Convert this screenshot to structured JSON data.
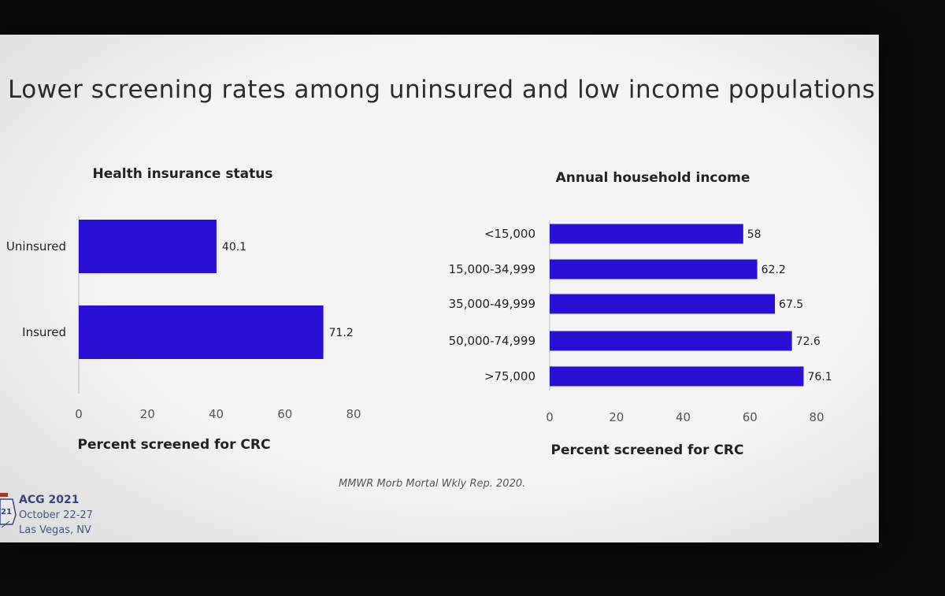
{
  "slide": {
    "title": "Lower screening rates among uninsured and low income populations",
    "source": "MMWR Morb Mortal Wkly Rep. 2020.",
    "footer": {
      "event": "ACG 2021",
      "dates": "October 22-27",
      "location": "Las Vegas, NV",
      "logo_year": "21"
    }
  },
  "colors": {
    "bar": "#2a0fd6",
    "slide_background": "#f4f4f4",
    "screen_surround": "#0b0b0c"
  },
  "chart_data": [
    {
      "type": "bar",
      "orientation": "horizontal",
      "title": "Health insurance status",
      "categories": [
        "Uninsured",
        "Insured"
      ],
      "values": [
        40.1,
        71.2
      ],
      "value_labels": [
        "40.1",
        "71.2"
      ],
      "xlabel": "Percent screened for CRC",
      "ylabel": "",
      "xlim": [
        0,
        80
      ],
      "xticks": [
        "0",
        "20",
        "40",
        "60",
        "80"
      ],
      "grid": false,
      "legend": "none"
    },
    {
      "type": "bar",
      "orientation": "horizontal",
      "title": "Annual household income",
      "categories": [
        "<15,000",
        "15,000-34,999",
        "35,000-49,999",
        "50,000-74,999",
        ">75,000"
      ],
      "values": [
        58,
        62.2,
        67.5,
        72.6,
        76.1
      ],
      "value_labels": [
        "58",
        "62.2",
        "67.5",
        "72.6",
        "76.1"
      ],
      "xlabel": "Percent screened for CRC",
      "ylabel": "",
      "xlim": [
        0,
        80
      ],
      "xticks": [
        "0",
        "20",
        "40",
        "60",
        "80"
      ],
      "grid": false,
      "legend": "none"
    }
  ]
}
